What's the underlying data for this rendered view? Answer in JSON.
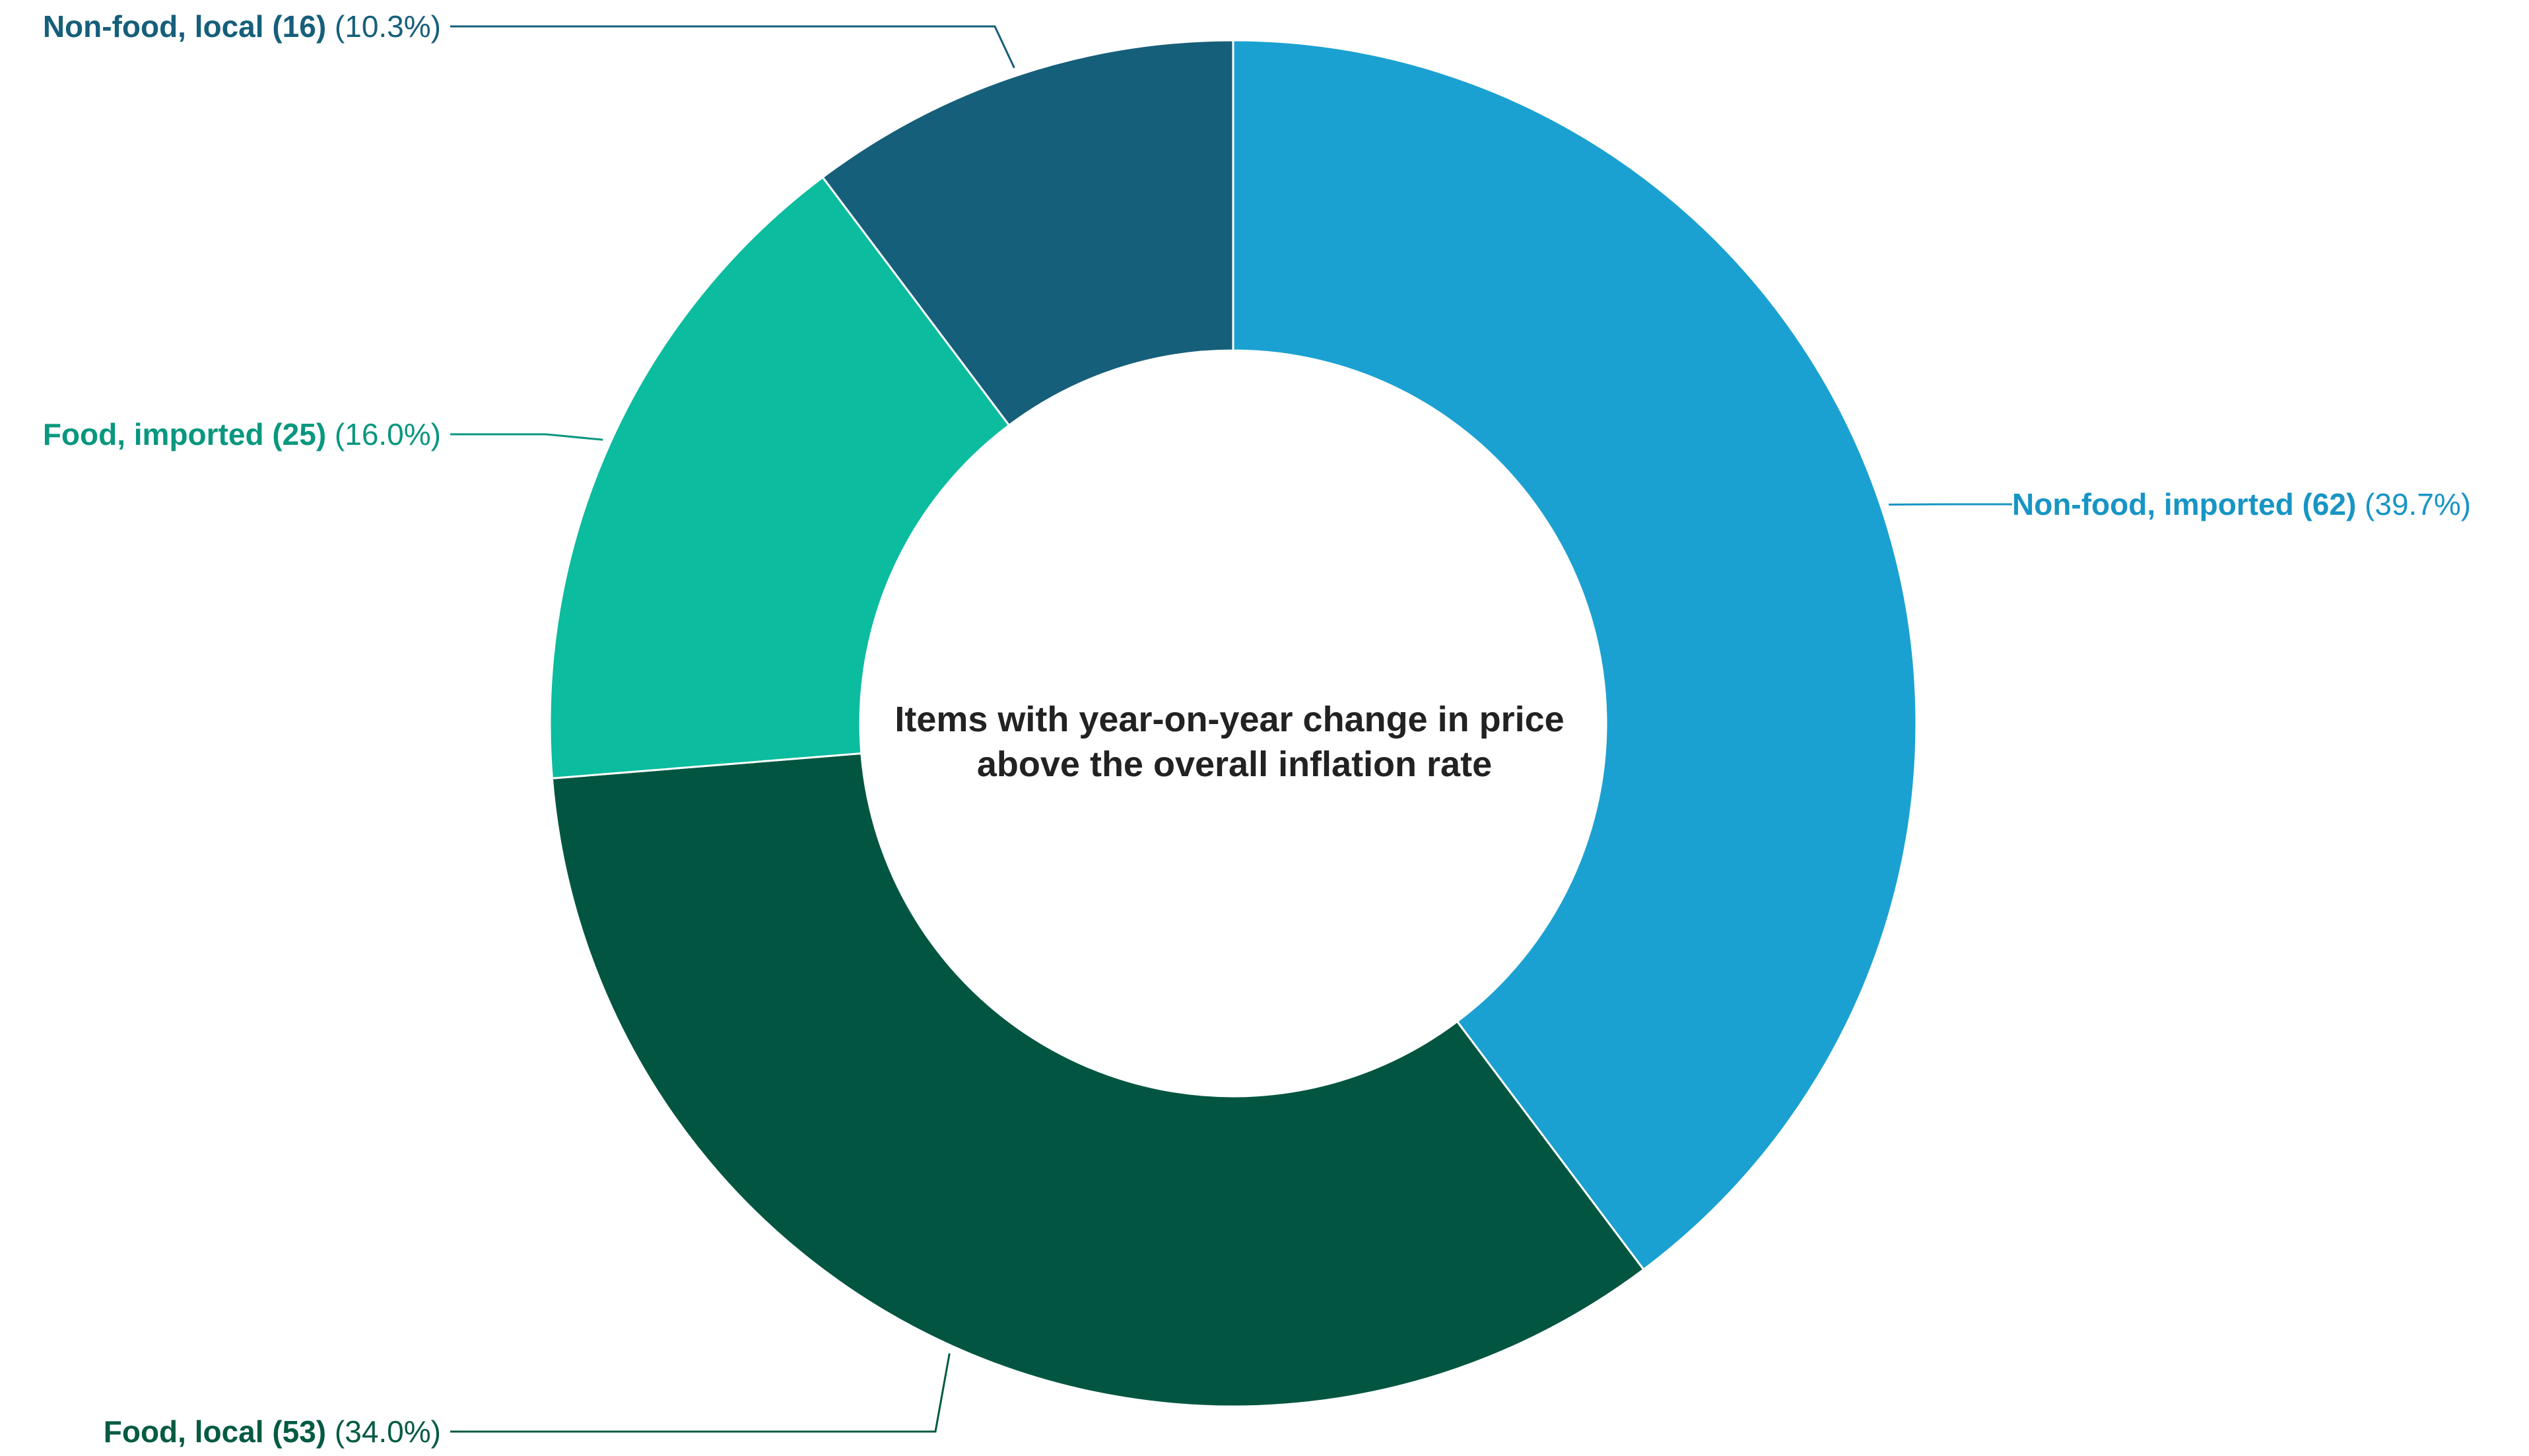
{
  "chart_data": {
    "type": "pie",
    "variant": "donut",
    "title_lines": [
      "Items with year-on-year change in price",
      "above the overall inflation rate"
    ],
    "slices": [
      {
        "label": "Non-food, imported",
        "count": 62,
        "count_text": "(62)",
        "percent": 39.7,
        "percent_text": "(39.7%)",
        "color": "#1ba1d1",
        "label_color": "#1795c4"
      },
      {
        "label": "Food, local",
        "count": 53,
        "count_text": "(53)",
        "percent": 34.0,
        "percent_text": "(34.0%)",
        "color": "#025641",
        "label_color": "#045a43"
      },
      {
        "label": "Food, imported",
        "count": 25,
        "count_text": "(25)",
        "percent": 16.0,
        "percent_text": "(16.0%)",
        "color": "#0bbc9e",
        "label_color": "#08977f"
      },
      {
        "label": "Non-food, local",
        "count": 16,
        "count_text": "(16)",
        "percent": 10.3,
        "percent_text": "(10.3%)",
        "color": "#165f7a",
        "label_color": "#165f7a"
      }
    ],
    "start_angle": "12 o'clock",
    "direction": "clockwise",
    "legend": "none",
    "grid": false
  }
}
